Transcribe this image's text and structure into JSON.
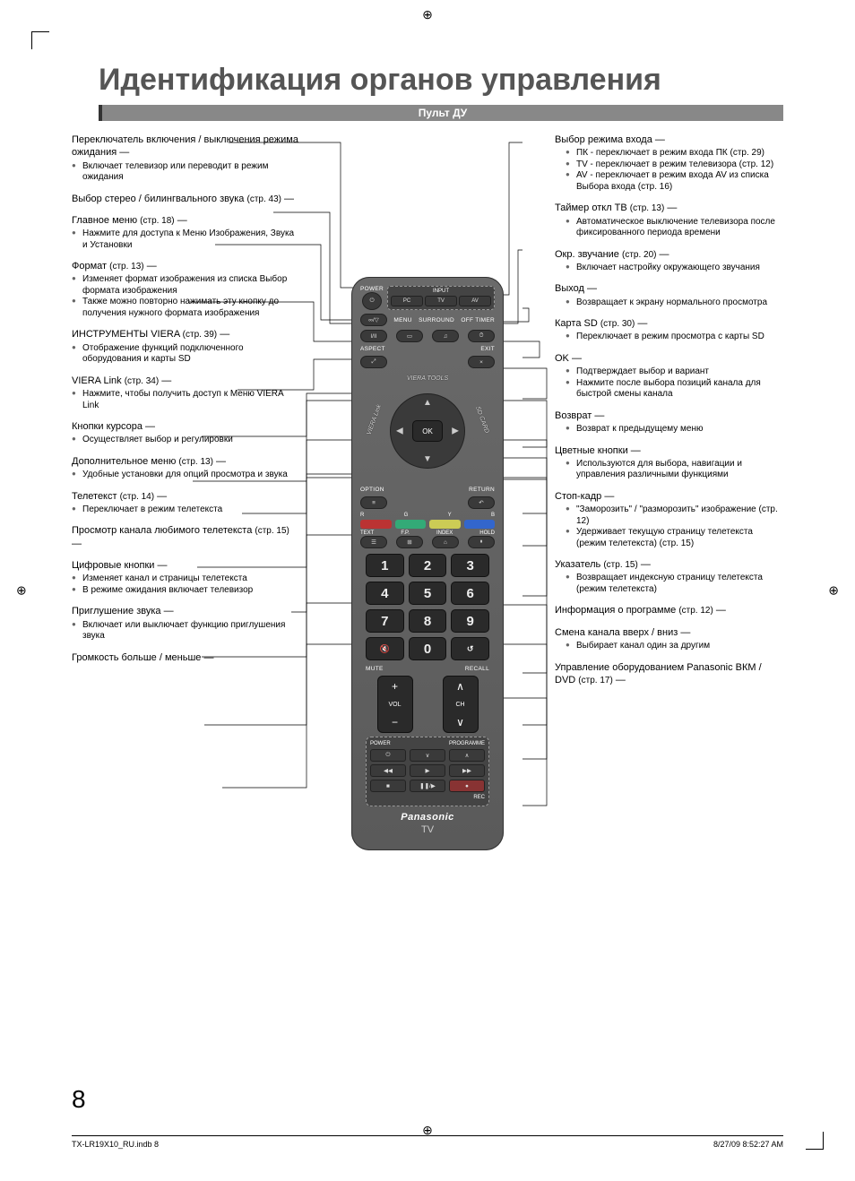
{
  "colors": {
    "heading": "#555555",
    "section_bar_bg": "#888888",
    "section_bar_border": "#333333",
    "remote_bg_top": "#6a6a6a",
    "remote_bg_bot": "#5a5a5a",
    "btn_bg": "#3a3a3a",
    "red": "#bb3333",
    "green": "#33aa77",
    "yellow": "#cccc55",
    "blue": "#3366cc"
  },
  "typography": {
    "title_fontsize": 34,
    "body_fontsize": 11,
    "small_fontsize": 10
  },
  "page_number": "8",
  "footer": {
    "file": "TX-LR19X10_RU.indb   8",
    "timestamp": "8/27/09   8:52:27 AM"
  },
  "title": "Идентификация органов управления",
  "section_bar": "Пульт ДУ",
  "remote": {
    "labels": {
      "power": "POWER",
      "input": "INPUT",
      "pc": "PC",
      "tv": "TV",
      "av": "AV",
      "menu": "MENU",
      "surround": "SURROUND",
      "offtimer": "OFF TIMER",
      "aspect": "ASPECT",
      "exit": "EXIT",
      "viera_tools": "VIERA TOOLS",
      "viera_link": "VIERA Link",
      "sd_card": "SD CARD",
      "ok": "OK",
      "option": "OPTION",
      "return": "RETURN",
      "r": "R",
      "g": "G",
      "y": "Y",
      "b": "B",
      "text": "TEXT",
      "fp": "F.P.",
      "index": "INDEX",
      "hold": "HOLD",
      "mute": "MUTE",
      "recall": "RECALL",
      "vol": "VOL",
      "ch": "CH",
      "vcr_power": "POWER",
      "programme": "PROGRAMME",
      "rec": "REC",
      "brand": "Panasonic",
      "tv_label": "TV"
    },
    "numpad": [
      "1",
      "2",
      "3",
      "4",
      "5",
      "6",
      "7",
      "8",
      "9",
      "",
      "0",
      ""
    ]
  },
  "left_callouts": [
    {
      "title": "Переключатель включения / выключения режима ожидания",
      "ref": "",
      "bullets": [
        "Включает телевизор или переводит в режим ожидания"
      ]
    },
    {
      "title": "Выбор стерео / билингвального звука",
      "ref": "(стр. 43)",
      "bullets": []
    },
    {
      "title": "Главное меню",
      "ref": "(стр. 18)",
      "bullets": [
        "Нажмите для доступа к Меню Изображения, Звука и Установки"
      ]
    },
    {
      "title": "Формат",
      "ref": "(стр. 13)",
      "bullets": [
        "Изменяет формат изображения из списка Выбор формата изображения",
        "Также можно повторно нажимать эту кнопку до получения нужного формата изображения"
      ]
    },
    {
      "title": "ИНСТРУМЕНТЫ VIERA",
      "ref": "(стр. 39)",
      "bullets": [
        "Отображение функций подключенного оборудования и карты SD"
      ]
    },
    {
      "title": "VIERA Link",
      "ref": "(стр. 34)",
      "bullets": [
        "Нажмите, чтобы получить доступ к Меню VIERA Link"
      ]
    },
    {
      "title": "Кнопки курсора",
      "ref": "",
      "bullets": [
        "Осуществляет выбор и регулировки"
      ]
    },
    {
      "title": "Дополнительное меню",
      "ref": "(стр. 13)",
      "bullets": [
        "Удобные установки для опций просмотра и звука"
      ]
    },
    {
      "title": "Телетекст",
      "ref": "(стр. 14)",
      "bullets": [
        "Переключает в режим телетекста"
      ]
    },
    {
      "title": "Просмотр канала любимого телетекста",
      "ref": "(стр. 15)",
      "bullets": []
    },
    {
      "title": "Цифровые кнопки",
      "ref": "",
      "bullets": [
        "Изменяет канал и страницы телетекста",
        "В режиме ожидания включает телевизор"
      ]
    },
    {
      "title": "Приглушение звука",
      "ref": "",
      "bullets": [
        "Включает или выключает функцию приглушения звука"
      ]
    },
    {
      "title": "Громкость больше / меньше",
      "ref": "",
      "bullets": []
    }
  ],
  "right_callouts": [
    {
      "title": "Выбор режима входа",
      "ref": "",
      "bullets": [
        "ПК - переключает в режим входа ПК (стр. 29)",
        "TV - переключает в режим телевизора (стр. 12)",
        "AV - переключает в режим входа AV из списка Выбора входа (стр. 16)"
      ]
    },
    {
      "title": "Таймер откл ТВ",
      "ref": "(стр. 13)",
      "bullets": [
        "Автоматическое выключение телевизора после фиксированного периода времени"
      ]
    },
    {
      "title": "Окр. звучание",
      "ref": "(стр. 20)",
      "bullets": [
        "Включает настройку окружающего звучания"
      ]
    },
    {
      "title": "Выход",
      "ref": "",
      "bullets": [
        "Возвращает к экрану нормального просмотра"
      ]
    },
    {
      "title": "Карта SD",
      "ref": "(стр. 30)",
      "bullets": [
        "Переключает в режим просмотра с карты SD"
      ]
    },
    {
      "title": "OK",
      "ref": "",
      "bullets": [
        "Подтверждает выбор и вариант",
        "Нажмите после выбора позиций канала для быстрой смены канала"
      ]
    },
    {
      "title": "Возврат",
      "ref": "",
      "bullets": [
        "Возврат к предыдущему меню"
      ]
    },
    {
      "title": "Цветные кнопки",
      "ref": "",
      "bullets": [
        "Используются для выбора, навигации и управления различными функциями"
      ]
    },
    {
      "title": "Стоп-кадр",
      "ref": "",
      "bullets": [
        "\"Заморозить\" / \"разморозить\" изображение (стр. 12)",
        "Удерживает текущую страницу телетекста (режим телетекста) (стр. 15)"
      ]
    },
    {
      "title": "Указатель",
      "ref": "(стр. 15)",
      "bullets": [
        "Возвращает индексную страницу телетекста (режим телетекста)"
      ]
    },
    {
      "title": "Информация о программе",
      "ref": "(стр. 12)",
      "bullets": []
    },
    {
      "title": "Смена канала вверх / вниз",
      "ref": "",
      "bullets": [
        "Выбирает канал один за другим"
      ]
    },
    {
      "title": "Управление оборудованием Panasonic ВКМ / DVD",
      "ref": "(стр. 17)",
      "bullets": []
    }
  ]
}
